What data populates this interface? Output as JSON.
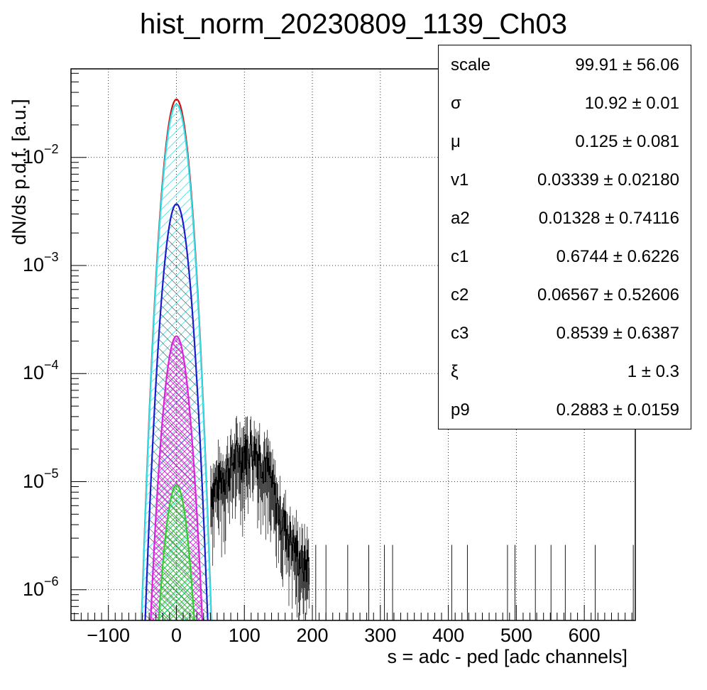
{
  "chart_data": {
    "type": "histogram",
    "title": "hist_norm_20230809_1139_Ch03",
    "xlabel": "s = adc - ped [adc channels]",
    "ylabel": "dN/ds p.d.f. [a.u.]",
    "xlim": [
      -155,
      675
    ],
    "ylim": [
      5.2e-07,
      0.066
    ],
    "yscale": "log",
    "grid": true,
    "x_ticks": [
      "−100",
      "0",
      "100",
      "200",
      "300",
      "400",
      "500",
      "600"
    ],
    "x_tick_values": [
      -100,
      0,
      100,
      200,
      300,
      400,
      500,
      600
    ],
    "y_ticks": [
      {
        "base": "10",
        "exp": "−2",
        "value": 0.01
      },
      {
        "base": "10",
        "exp": "−3",
        "value": 0.001
      },
      {
        "base": "10",
        "exp": "−4",
        "value": 0.0001
      },
      {
        "base": "10",
        "exp": "−5",
        "value": 1e-05
      },
      {
        "base": "10",
        "exp": "−6",
        "value": 1e-06
      }
    ],
    "curves": [
      {
        "color": "#d01010",
        "peak": 0.0345,
        "sigma": 10.9,
        "mean": 0.125,
        "hatch": "none"
      },
      {
        "color": "#30e0e8",
        "peak": 0.031,
        "sigma": 10.92,
        "mean": 0.125,
        "hatch": "cyan"
      },
      {
        "color": "#1a1ad0",
        "peak": 0.0037,
        "sigma": 10.92,
        "mean": 0.125,
        "hatch": "black"
      },
      {
        "color": "#e020e0",
        "peak": 0.000222,
        "sigma": 10.92,
        "mean": 0.125,
        "hatch": "magenta"
      },
      {
        "color": "#30d030",
        "peak": 9.3e-06,
        "sigma": 10.92,
        "mean": 0.125,
        "hatch": "green"
      }
    ],
    "histogram_tail": {
      "description_values": [
        {
          "x": 55,
          "y": 9e-06
        },
        {
          "x": 70,
          "y": 1.2e-05
        },
        {
          "x": 90,
          "y": 1.8e-05
        },
        {
          "x": 110,
          "y": 2.2e-05
        },
        {
          "x": 130,
          "y": 1.6e-05
        },
        {
          "x": 150,
          "y": 5.5e-06
        },
        {
          "x": 170,
          "y": 2.8e-06
        },
        {
          "x": 185,
          "y": 1.8e-06
        }
      ],
      "sparse_x": [
        205,
        220,
        252,
        283,
        306,
        318,
        405,
        428,
        487,
        498,
        528,
        551,
        572,
        616,
        672
      ]
    }
  },
  "statbox": {
    "rows": [
      {
        "name": "scale",
        "value": "99.91 ± 56.06"
      },
      {
        "name": "σ",
        "value": "10.92 ± 0.01"
      },
      {
        "name": "μ",
        "value": "0.125 ± 0.081"
      },
      {
        "name": "v1",
        "value": "0.03339 ± 0.02180"
      },
      {
        "name": "a2",
        "value": "0.01328 ± 0.74116"
      },
      {
        "name": "c1",
        "value": "0.6744 ± 0.6226"
      },
      {
        "name": "c2",
        "value": "0.06567 ± 0.52606"
      },
      {
        "name": "c3",
        "value": "0.8539 ± 0.6387"
      },
      {
        "name": "ξ",
        "value": "1 ± 0.3"
      },
      {
        "name": "p9",
        "value": "0.2883 ± 0.0159"
      }
    ]
  }
}
